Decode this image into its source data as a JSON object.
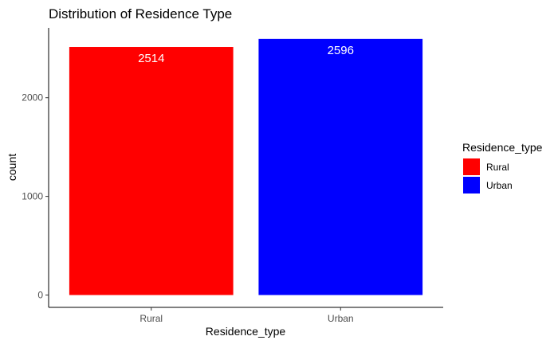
{
  "chart_data": {
    "type": "bar",
    "title": "Distribution of Residence Type",
    "xlabel": "Residence_type",
    "ylabel": "count",
    "categories": [
      "Rural",
      "Urban"
    ],
    "values": [
      2514,
      2596
    ],
    "data_labels": [
      "2514",
      "2596"
    ],
    "colors": [
      "#ff0000",
      "#0000ff"
    ],
    "ylim": [
      0,
      2596
    ],
    "yticks": [
      0,
      1000,
      2000
    ],
    "ytick_labels": [
      "0",
      "1000",
      "2000"
    ],
    "grid": false,
    "legend": {
      "title": "Residence_type",
      "placement": "right",
      "entries": [
        {
          "label": "Rural",
          "color": "#ff0000"
        },
        {
          "label": "Urban",
          "color": "#0000ff"
        }
      ]
    }
  }
}
